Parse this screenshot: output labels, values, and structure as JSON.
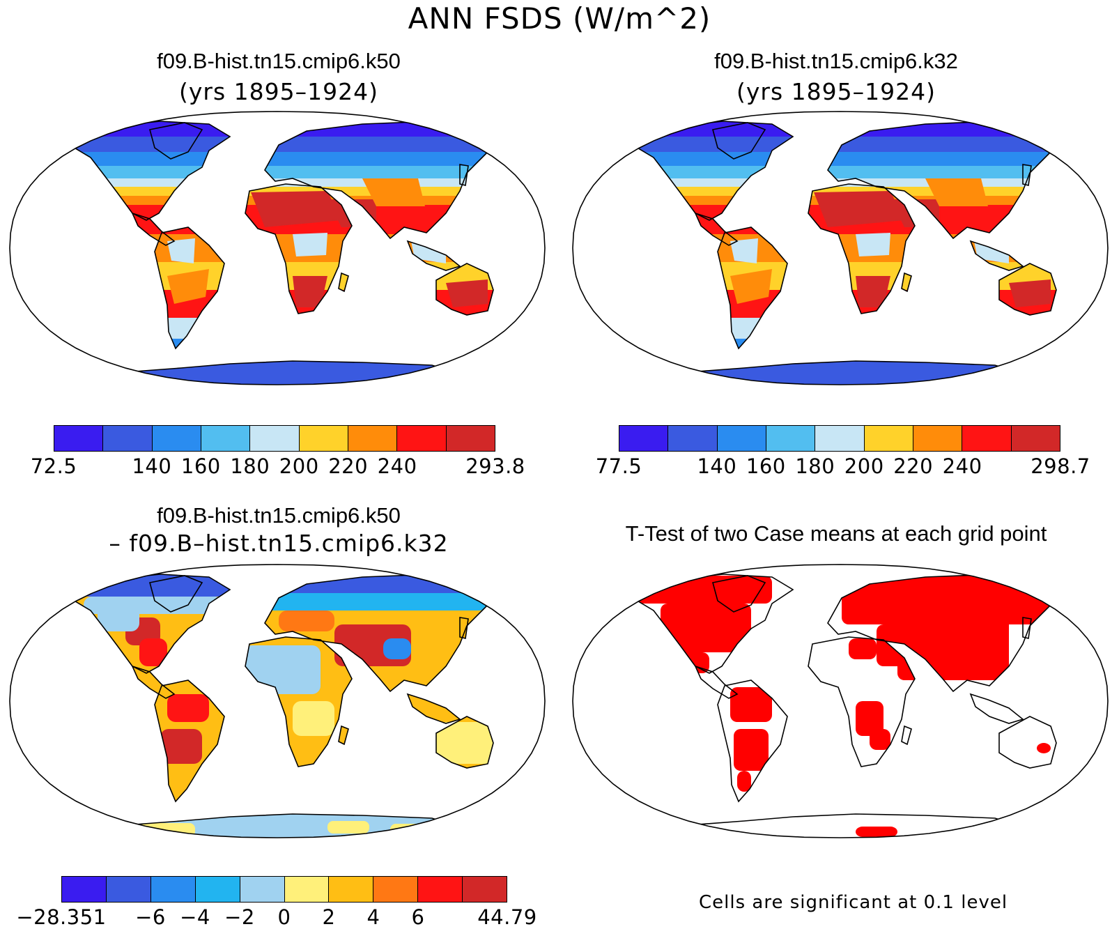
{
  "title": "ANN FSDS (W/m^2)",
  "panels": [
    {
      "id": "k50",
      "title": "f09.B-hist.tn15.cmip6.k50",
      "subtitle": "(yrs 1895–1924)",
      "colorbar": {
        "colors": [
          "#3a1cf0",
          "#3a5ae0",
          "#2a8cf0",
          "#52bef0",
          "#c8e6f5",
          "#ffd22a",
          "#ff8c0a",
          "#ff1414",
          "#d22828"
        ],
        "labels": [
          "72.5",
          "",
          "140",
          "160",
          "180",
          "200",
          "220",
          "240",
          "",
          "293.8"
        ]
      }
    },
    {
      "id": "k32",
      "title": "f09.B-hist.tn15.cmip6.k32",
      "subtitle": "(yrs 1895–1924)",
      "colorbar": {
        "colors": [
          "#3a1cf0",
          "#3a5ae0",
          "#2a8cf0",
          "#52bef0",
          "#c8e6f5",
          "#ffd22a",
          "#ff8c0a",
          "#ff1414",
          "#d22828"
        ],
        "labels": [
          "77.5",
          "",
          "140",
          "160",
          "180",
          "200",
          "220",
          "240",
          "",
          "298.7"
        ]
      }
    },
    {
      "id": "diff",
      "title": "f09.B-hist.tn15.cmip6.k50",
      "subtitle": "– f09.B–hist.tn15.cmip6.k32",
      "colorbar": {
        "colors": [
          "#3a1cf0",
          "#3a5ae0",
          "#2a8cf0",
          "#22b4f0",
          "#a0d2f0",
          "#fff07a",
          "#ffbe14",
          "#ff7814",
          "#ff1414",
          "#d22828"
        ],
        "labels": [
          "−28.351",
          "",
          "−6",
          "−4",
          "−2",
          "0",
          "2",
          "4",
          "6",
          "",
          "44.79"
        ]
      }
    },
    {
      "id": "ttest",
      "title": "T-Test of two Case means at each grid point",
      "note": "Cells are significant at 0.1 level"
    }
  ],
  "colors": {
    "land_default": "#ff8c0a",
    "significant": "#ff0000",
    "coast": "#000000"
  }
}
